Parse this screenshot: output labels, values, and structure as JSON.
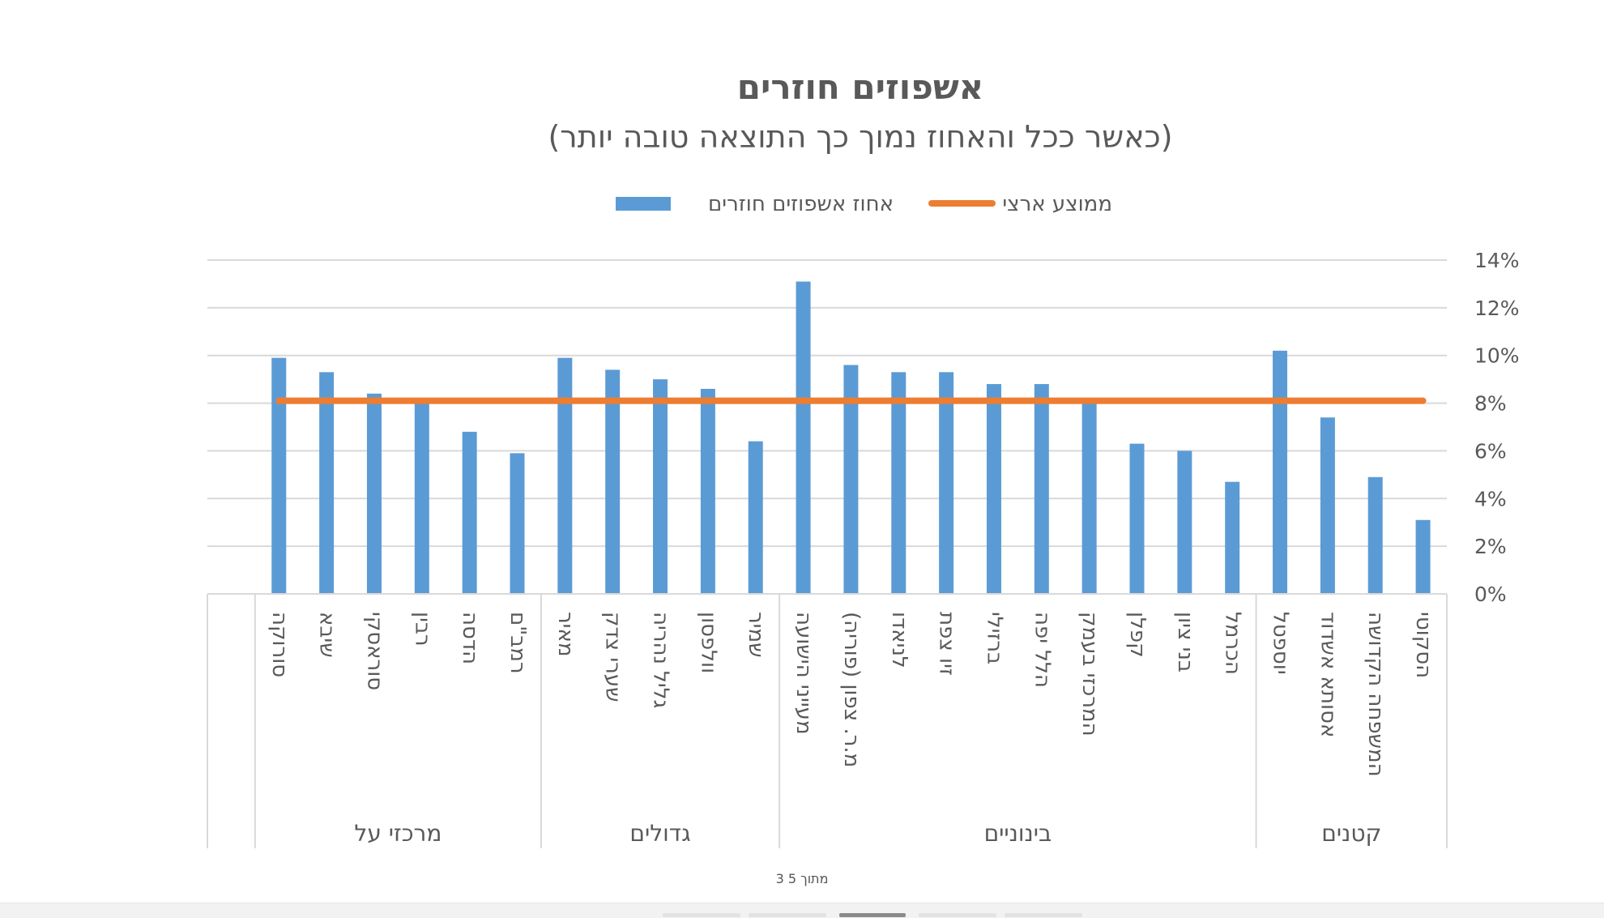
{
  "chart_data": {
    "type": "bar",
    "title": "אשפוזים חוזרים",
    "subtitle": "(כאשר ככל והאחוז נמוך כך התוצאה טובה יותר)",
    "legend": {
      "placement": "top",
      "entries": [
        "ממוצע ארצי",
        "אחוז אשפוזים חוזרים"
      ]
    },
    "xlabel": "",
    "ylabel": "",
    "ylim": [
      0,
      14
    ],
    "yticks": [
      "14%",
      "12%",
      "10%",
      "8%",
      "6%",
      "4%",
      "2%",
      "0%"
    ],
    "ytick_values": [
      14,
      12,
      10,
      8,
      6,
      4,
      2,
      0
    ],
    "grid": true,
    "colors": {
      "bar": "#5B9BD5",
      "line": "#ED7D31"
    },
    "groups": [
      {
        "label": "מרכזי על",
        "categories": [
          "סורוקה",
          "שיבא",
          "סוראסקי",
          "רבין",
          "הדסה",
          "רמב\"ם"
        ]
      },
      {
        "label": "גדולים",
        "categories": [
          "מאיר",
          "שערי צדק",
          "גליל נהריה",
          "וולפסון",
          "שמיר"
        ]
      },
      {
        "label": "בינוניים",
        "categories": [
          "מעייני הישועה",
          "מ.ר. צפון (פוריה)",
          "לניאדו",
          "זיו צפת",
          "ברזילי",
          "הלל יפה",
          "המרכזי בעמק",
          "קפלן",
          "בני ציון",
          "הכרמל"
        ]
      },
      {
        "label": "קטנים",
        "categories": [
          "יוספטל",
          "אסותא אשדוד",
          "המשפחה הקדושה",
          "הסקוטי"
        ]
      }
    ],
    "series": [
      {
        "name": "אחוז אשפוזים חוזרים",
        "type": "bar",
        "values": [
          9.9,
          9.3,
          8.4,
          8.0,
          6.8,
          5.9,
          9.9,
          9.4,
          9.0,
          8.6,
          6.4,
          13.1,
          9.6,
          9.3,
          9.3,
          8.8,
          8.8,
          8.0,
          6.3,
          6.0,
          4.7,
          10.2,
          7.4,
          4.9,
          3.1
        ]
      },
      {
        "name": "ממוצע ארצי",
        "type": "line",
        "value": 8.1
      }
    ]
  },
  "footer": {
    "page_indicator": "3 מתוך 5"
  }
}
